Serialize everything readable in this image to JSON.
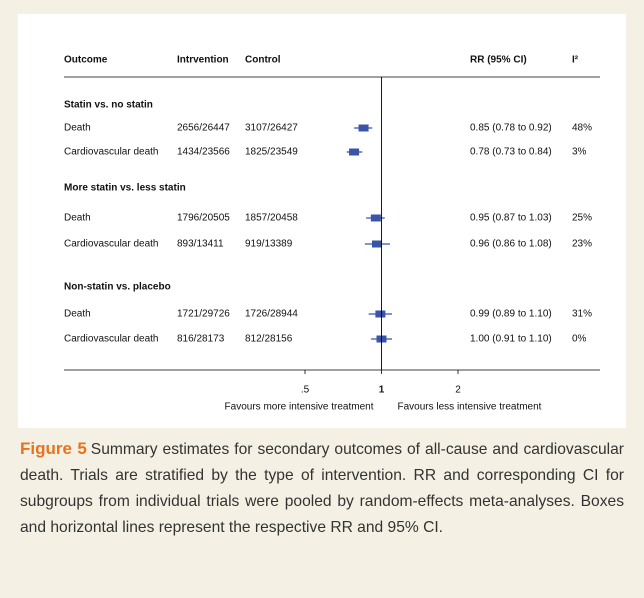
{
  "chart_data": {
    "type": "forest",
    "headers": {
      "outcome": "Outcome",
      "intervention": "Intrvention",
      "control": "Control",
      "rr": "RR (95% CI)",
      "i2": "I²"
    },
    "groups": [
      {
        "title": "Statin vs. no statin",
        "rows": [
          {
            "outcome": "Death",
            "intervention": "2656/26447",
            "control": "3107/26427",
            "values": [
              0.85,
              0.78,
              0.92
            ],
            "value_label": "0.85 (0.78 to 0.92)",
            "i2": 48,
            "i2_label": "48%"
          },
          {
            "outcome": "Cardiovascular death",
            "intervention": "1434/23566",
            "control": "1825/23549",
            "values": [
              0.78,
              0.73,
              0.84
            ],
            "value_label": "0.78 (0.73 to 0.84)",
            "i2": 3,
            "i2_label": "3%"
          }
        ]
      },
      {
        "title": "More statin vs. less statin",
        "rows": [
          {
            "outcome": "Death",
            "intervention": "1796/20505",
            "control": "1857/20458",
            "values": [
              0.95,
              0.87,
              1.03
            ],
            "value_label": "0.95 (0.87 to 1.03)",
            "i2": 25,
            "i2_label": "25%"
          },
          {
            "outcome": "Cardiovascular death",
            "intervention": "893/13411",
            "control": "919/13389",
            "values": [
              0.96,
              0.86,
              1.08
            ],
            "value_label": "0.96 (0.86 to 1.08)",
            "i2": 23,
            "i2_label": "23%"
          }
        ]
      },
      {
        "title": "Non-statin vs. placebo",
        "rows": [
          {
            "outcome": "Death",
            "intervention": "1721/29726",
            "control": "1726/28944",
            "values": [
              0.99,
              0.89,
              1.1
            ],
            "value_label": "0.99 (0.89 to 1.10)",
            "i2": 31,
            "i2_label": "31%"
          },
          {
            "outcome": "Cardiovascular death",
            "intervention": "816/28173",
            "control": "812/28156",
            "values": [
              1.0,
              0.91,
              1.1
            ],
            "value_label": "1.00 (0.91 to 1.10)",
            "i2": 0,
            "i2_label": "0%"
          }
        ]
      }
    ],
    "log_scale": true,
    "xlim": [
      0.5,
      2
    ],
    "xticks": [
      {
        "value": 0.5,
        "label": ".5"
      },
      1,
      2
    ],
    "favours": [
      "Favours more intensive treatment",
      "Favours less intensive treatment"
    ],
    "color": "#3a55a8"
  },
  "caption": {
    "label": "Figure 5",
    "text": "Summary estimates for secondary outcomes of all-cause and cardiovascular death. Trials are stratified by the type of intervention. RR and corresponding CI for subgroups from individual trials were pooled by random-effects meta-analyses. Boxes and horizontal lines represent the respective RR and 95% CI."
  }
}
